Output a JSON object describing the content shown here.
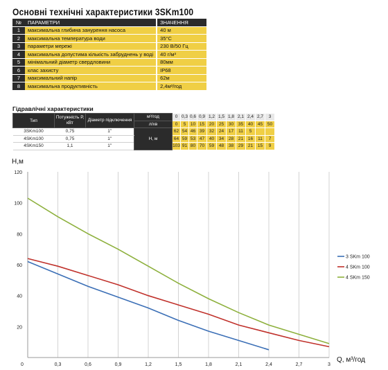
{
  "title": "Основні технічні характеристики 3SKm100",
  "spec_table": {
    "headers": [
      "№",
      "ПАРАМЕТРИ",
      "ЗНАЧЕННЯ"
    ],
    "rows": [
      {
        "n": "1",
        "param": "максимальна глибина занурення насоса",
        "value": "40 м"
      },
      {
        "n": "2",
        "param": "максимальна температура води",
        "value": "35°С"
      },
      {
        "n": "3",
        "param": "параметри мережі",
        "value": "230 В/50 Гц"
      },
      {
        "n": "4",
        "param": "максимальна допустима кількість забруднень у воді",
        "value": "40 г/м³"
      },
      {
        "n": "5",
        "param": "мінімальний діаметр свердловини",
        "value": "80мм"
      },
      {
        "n": "6",
        "param": "клас захисту",
        "value": "IP68"
      },
      {
        "n": "7",
        "param": "максимальний напір",
        "value": "62м"
      },
      {
        "n": "8",
        "param": "максимальна продуктивність",
        "value": "2,4м³/год"
      }
    ]
  },
  "hydraulic": {
    "title": "Гідравлічні характеристики",
    "headers": {
      "type": "Тип",
      "power": "Потужність Р, кВт",
      "diameter": "Діаметр підключення",
      "flow_unit": "м³/год",
      "lpm_unit": "л/хв",
      "head_label": "Н, м"
    },
    "flow_values": [
      "0",
      "0,3",
      "0,6",
      "0,9",
      "1,2",
      "1,5",
      "1,8",
      "2,1",
      "2,4",
      "2,7",
      "3"
    ],
    "lpm_values": [
      "0",
      "5",
      "10",
      "15",
      "20",
      "25",
      "30",
      "35",
      "40",
      "45",
      "50"
    ],
    "rows": [
      {
        "type": "3SKm100",
        "power": "0,75",
        "diameter": "1\"",
        "heads": [
          "62",
          "54",
          "46",
          "39",
          "32",
          "24",
          "17",
          "11",
          "5",
          "",
          ""
        ]
      },
      {
        "type": "4SKm100",
        "power": "0,75",
        "diameter": "1\"",
        "heads": [
          "64",
          "59",
          "53",
          "47",
          "40",
          "34",
          "28",
          "21",
          "16",
          "11",
          "7"
        ]
      },
      {
        "type": "4SKm150",
        "power": "1,1",
        "diameter": "1\"",
        "heads": [
          "103",
          "91",
          "80",
          "70",
          "59",
          "48",
          "38",
          "29",
          "21",
          "15",
          "9"
        ]
      }
    ]
  },
  "chart_data": {
    "type": "line",
    "xlabel": "Q, м³/год",
    "ylabel": "Н,м",
    "x_ticks": [
      "0",
      "0,3",
      "0,6",
      "0,9",
      "1,2",
      "1,5",
      "1,8",
      "2,1",
      "2,4",
      "2,7",
      "3"
    ],
    "y_ticks": [
      "0",
      "20",
      "40",
      "60",
      "80",
      "100",
      "120"
    ],
    "xlim": [
      0,
      3
    ],
    "ylim": [
      0,
      120
    ],
    "grid": "vertical",
    "legend_position": "right",
    "series": [
      {
        "name": "3 SKm 100",
        "color": "#3b6fb6",
        "x": [
          0,
          0.3,
          0.6,
          0.9,
          1.2,
          1.5,
          1.8,
          2.1,
          2.4
        ],
        "y": [
          62,
          54,
          46,
          39,
          32,
          24,
          17,
          11,
          5
        ]
      },
      {
        "name": "4 SKm 100",
        "color": "#c0312b",
        "x": [
          0,
          0.3,
          0.6,
          0.9,
          1.2,
          1.5,
          1.8,
          2.1,
          2.4,
          2.7,
          3
        ],
        "y": [
          64,
          59,
          53,
          47,
          40,
          34,
          28,
          21,
          16,
          11,
          7
        ]
      },
      {
        "name": "4 SKm 150",
        "color": "#8db03c",
        "x": [
          0,
          0.3,
          0.6,
          0.9,
          1.2,
          1.5,
          1.8,
          2.1,
          2.4,
          2.7,
          3
        ],
        "y": [
          103,
          91,
          80,
          70,
          59,
          48,
          38,
          29,
          21,
          15,
          9
        ]
      }
    ]
  }
}
